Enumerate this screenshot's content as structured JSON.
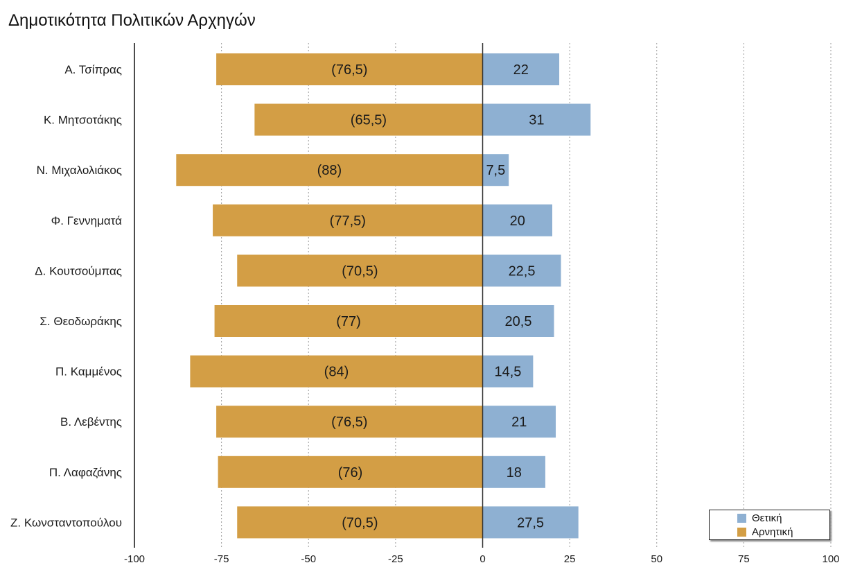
{
  "chart_data": {
    "type": "bar",
    "orientation": "horizontal",
    "stacked": "diverging",
    "title": "Δημοτικότητα Πολιτικών Αρχηγών",
    "categories": [
      "Α. Τσίπρας",
      "Κ. Μητσοτάκης",
      "Ν. Μιχαλολιάκος",
      "Φ. Γεννηματά",
      "Δ. Κουτσούμπας",
      "Σ. Θεοδωράκης",
      "Π. Καμμένος",
      "Β. Λεβέντης",
      "Π. Λαφαζάνης",
      "Ζ. Κωνσταντοπούλου"
    ],
    "series": [
      {
        "name": "Θετική",
        "color": "#8eb0d2",
        "values": [
          22,
          31,
          7.5,
          20,
          22.5,
          20.5,
          14.5,
          21,
          18,
          27.5
        ],
        "labels": [
          "22",
          "31",
          "7,5",
          "20",
          "22,5",
          "20,5",
          "14,5",
          "21",
          "18",
          "27,5"
        ]
      },
      {
        "name": "Αρνητική",
        "color": "#d39e45",
        "values": [
          -76.5,
          -65.5,
          -88,
          -77.5,
          -70.5,
          -77,
          -84,
          -76.5,
          -76,
          -70.5
        ],
        "labels": [
          "(76,5)",
          "(65,5)",
          "(88)",
          "(77,5)",
          "(70,5)",
          "(77)",
          "(84)",
          "(76,5)",
          "(76)",
          "(70,5)"
        ]
      }
    ],
    "xlim": [
      -100,
      100
    ],
    "xticks": [
      -100,
      -75,
      -50,
      -25,
      0,
      25,
      50,
      75,
      100
    ],
    "xtick_labels": [
      "-100",
      "-75",
      "-50",
      "-25",
      "0",
      "25",
      "50",
      "75",
      "100"
    ],
    "grid": "vertical dashed",
    "legend_position": "bottom-right",
    "xlabel": "",
    "ylabel": ""
  }
}
